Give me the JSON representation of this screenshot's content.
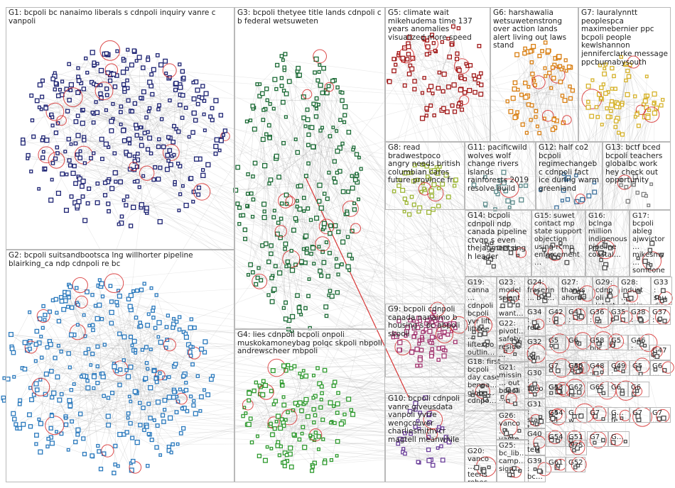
{
  "groups": [
    {
      "id": "G1",
      "label": "G1: bcpoli bc nanaimo liberals s cdnpoli inquiry vanre c vanpoli",
      "color": "#1c2272",
      "count": 330
    },
    {
      "id": "G2",
      "label": "G2: bcpoli suitsandbootsca lng willhorter pipeline blairking_ca ndp cdnpoli re bc",
      "color": "#2a79bd",
      "count": 330
    },
    {
      "id": "G3",
      "label": "G3: bcpoli thetyee title lands cdnpoli c b federal wetsuweten",
      "color": "#1b6a35",
      "count": 260
    },
    {
      "id": "G4",
      "label": "G4: lies cdnpoli bcpoli onpoli muskokamoneybag polqc skpoli nbpoli andrewscheer mbpoli",
      "color": "#2e9a2e",
      "count": 130
    },
    {
      "id": "G5",
      "label": "G5: climate wait mikehudema time 137 years anomalies visualized more speed",
      "color": "#a01818",
      "count": 90
    },
    {
      "id": "G6",
      "label": "G6: harshawalia wetsuwetenstrong over action lands alert living out laws stand",
      "color": "#d97f12",
      "count": 75
    },
    {
      "id": "G7",
      "label": "G7: lauralynntt peoplespca maximebernier ppc bcpoli people kewlshannon jenniferclarke message ppcburnabysouth",
      "color": "#d6b22a",
      "count": 70
    },
    {
      "id": "G8",
      "label": "G8: read bradwestpoco angry needs british columbian cares future province fr",
      "color": "#9cb534",
      "count": 45
    },
    {
      "id": "G9",
      "label": "G9: bcpoli cdnpoli canada nanaimo b housing s bc abpoli skpoli",
      "color": "#a1346f",
      "count": 75
    },
    {
      "id": "G10",
      "label": "G10: bcpoli cdnpoli vanre giveusdata vanpoli yvrre wengcouver charliesmithvcr magtell meanwhile",
      "color": "#6b3f9a",
      "count": 35
    },
    {
      "id": "G11",
      "label": "G11: pacificwild wolves wolf change rivers islands rainforests 2019 resolve build",
      "color": "#5b8a8a",
      "count": 18
    },
    {
      "id": "G12",
      "label": "G12: half co2 bcpoli regimechangebc cdnpoli fact ice during warm greenland",
      "color": "#3a6f9c",
      "count": 14
    },
    {
      "id": "G13",
      "label": "G13: bctf bced bcpoli teachers globalbc work hey check out opportunity",
      "color": "#7f7f7f",
      "count": 12
    },
    {
      "id": "G14",
      "label": "G14: bcpoli cdnpoli ndp canada pipeline ctvqp s even thejagmeetsingh leader",
      "color": "#4d4d4d",
      "count": 12
    },
    {
      "id": "G15",
      "label": "G15: suwet contact mp state support objection using rcmp enforcement…",
      "color": "#4d4d4d",
      "count": 10
    },
    {
      "id": "G16",
      "label": "G16: bclnga million indigenous pipeline coastal…",
      "color": "#4d4d4d",
      "count": 9
    },
    {
      "id": "G17",
      "label": "G17: bcpoli ableg ajwvictor… mikesmy… someone…",
      "color": "#4d4d4d",
      "count": 9
    },
    {
      "id": "G18",
      "label": "G18: first bcpoli day case benpa… globe… cdnpo…",
      "color": "#4d4d4d",
      "count": 8
    },
    {
      "id": "G19",
      "label": "G19: canna… cdnpoli bcpoli yvr lift liftcoe… liftexpo outlin…",
      "color": "#4d4d4d",
      "count": 8
    },
    {
      "id": "G20",
      "label": "G20: vanco… teens rebec… organi…",
      "color": "#4d4d4d",
      "count": 6
    },
    {
      "id": "G21",
      "label": "G21: missin… out bcpoli…",
      "color": "#4d4d4d",
      "count": 6
    },
    {
      "id": "G22",
      "label": "G22: pivotl… safety reside…",
      "color": "#4d4d4d",
      "count": 6
    },
    {
      "id": "G23",
      "label": "G23: model scient… want…",
      "color": "#4d4d4d",
      "count": 6
    },
    {
      "id": "G24",
      "label": "G24: fraserin… b c…",
      "color": "#4d4d4d",
      "count": 5
    },
    {
      "id": "G25",
      "label": "G25: bc_lib… camp… sign…",
      "color": "#4d4d4d",
      "count": 5
    },
    {
      "id": "G26",
      "label": "G26: vanco… vanre vanpo…",
      "color": "#4d4d4d",
      "count": 5
    },
    {
      "id": "G27",
      "label": "G27: thanks ahorac…",
      "color": "#4d4d4d",
      "count": 5
    },
    {
      "id": "G28",
      "label": "G28: indust… domin…",
      "color": "#4d4d4d",
      "count": 4
    },
    {
      "id": "G29",
      "label": "G29: cdnpoli latest…",
      "color": "#4d4d4d",
      "count": 4
    },
    {
      "id": "G30",
      "label": "G30: theo… van…",
      "color": "#4d4d4d",
      "count": 4
    },
    {
      "id": "G31",
      "label": "G31: start… inth…",
      "color": "#4d4d4d",
      "count": 4
    },
    {
      "id": "G32",
      "label": "G32: cdn… reco…",
      "color": "#4d4d4d",
      "count": 4
    },
    {
      "id": "G33",
      "label": "G33: saudi stud…",
      "color": "#4d4d4d",
      "count": 4
    },
    {
      "id": "G34",
      "label": "G34: rele… meg…",
      "color": "#4d4d4d",
      "count": 4
    },
    {
      "id": "G35",
      "label": "G35: hou…",
      "color": "#4d4d4d",
      "count": 3
    },
    {
      "id": "G36",
      "label": "G36: late…",
      "color": "#4d4d4d",
      "count": 3
    },
    {
      "id": "G37",
      "label": "G37: jjhor…",
      "color": "#4d4d4d",
      "count": 3
    },
    {
      "id": "G38",
      "label": "G38: cou…",
      "color": "#4d4d4d",
      "count": 3
    },
    {
      "id": "G39",
      "label": "G39: bc…",
      "color": "#4d4d4d",
      "count": 3
    },
    {
      "id": "G40",
      "label": "G40: terry…",
      "color": "#4d4d4d",
      "count": 3
    },
    {
      "id": "G41",
      "label": "G41: cba…",
      "color": "#4d4d4d",
      "count": 3
    },
    {
      "id": "G42",
      "label": "G42: kee…",
      "color": "#4d4d4d",
      "count": 3
    },
    {
      "id": "G43",
      "label": "G43: bcp…",
      "color": "#4d4d4d",
      "count": 3
    },
    {
      "id": "G44",
      "label": "G44:",
      "color": "#4d4d4d",
      "count": 3
    },
    {
      "id": "G45",
      "label": "G45: van…",
      "color": "#4d4d4d",
      "count": 3
    },
    {
      "id": "G46",
      "label": "G46: bc…",
      "color": "#4d4d4d",
      "count": 3
    },
    {
      "id": "G47",
      "label": "G47: gre…",
      "color": "#4d4d4d",
      "count": 3
    },
    {
      "id": "G48",
      "label": "G48: dyk…",
      "color": "#4d4d4d",
      "count": 3
    },
    {
      "id": "G49",
      "label": "G49: tvv…",
      "color": "#4d4d4d",
      "count": 3
    },
    {
      "id": "G50",
      "label": "G50",
      "color": "#4d4d4d",
      "count": 2
    },
    {
      "id": "G51",
      "label": "G51",
      "color": "#4d4d4d",
      "count": 2
    },
    {
      "id": "G52",
      "label": "G52",
      "color": "#4d4d4d",
      "count": 2
    },
    {
      "id": "G53",
      "label": "G5… cd…",
      "color": "#4d4d4d",
      "count": 2
    },
    {
      "id": "G54",
      "label": "G54",
      "color": "#4d4d4d",
      "count": 2
    },
    {
      "id": "G55",
      "label": "G5… hel…",
      "color": "#4d4d4d",
      "count": 2
    },
    {
      "id": "G56",
      "label": "G5… bur…",
      "color": "#4d4d4d",
      "count": 2
    },
    {
      "id": "G57",
      "label": "G5… bc…",
      "color": "#4d4d4d",
      "count": 2
    },
    {
      "id": "G58",
      "label": "G58 bur…",
      "color": "#4d4d4d",
      "count": 2
    },
    {
      "id": "G59",
      "label": "G5… tr…",
      "color": "#4d4d4d",
      "count": 2
    },
    {
      "id": "G60",
      "label": "G6… pre…",
      "color": "#4d4d4d",
      "count": 2
    },
    {
      "id": "G61",
      "label": "G61",
      "color": "#4d4d4d",
      "count": 2
    },
    {
      "id": "G62",
      "label": "G62 bc…",
      "color": "#4d4d4d",
      "count": 2
    },
    {
      "id": "G63",
      "label": "G6",
      "color": "#4d4d4d",
      "count": 2
    },
    {
      "id": "G64",
      "label": "G6… da…",
      "color": "#4d4d4d",
      "count": 2
    },
    {
      "id": "G65",
      "label": "G65",
      "color": "#4d4d4d",
      "count": 2
    },
    {
      "id": "G66",
      "label": "G6",
      "color": "#4d4d4d",
      "count": 2
    },
    {
      "id": "G67",
      "label": "G7",
      "color": "#4d4d4d",
      "count": 2
    },
    {
      "id": "G68",
      "label": "G7… gr…",
      "color": "#4d4d4d",
      "count": 2
    },
    {
      "id": "G69",
      "label": "G… w…",
      "color": "#4d4d4d",
      "count": 2
    },
    {
      "id": "G70",
      "label": "G… fe…",
      "color": "#4d4d4d",
      "count": 2
    },
    {
      "id": "G71",
      "label": "G7",
      "color": "#4d4d4d",
      "count": 2
    },
    {
      "id": "G72",
      "label": "G7… po…",
      "color": "#4d4d4d",
      "count": 2
    },
    {
      "id": "G73",
      "label": "G7",
      "color": "#4d4d4d",
      "count": 2
    },
    {
      "id": "G74",
      "label": "G…",
      "color": "#4d4d4d",
      "count": 2
    },
    {
      "id": "G75",
      "label": "G75",
      "color": "#4d4d4d",
      "count": 2
    }
  ],
  "colors": {
    "background": "#ffffff",
    "box_border": "#b9b9b9",
    "edge": "#9a9a9a",
    "self_loop": "#d42020",
    "label_text": "#222222"
  },
  "legend_shown": false
}
